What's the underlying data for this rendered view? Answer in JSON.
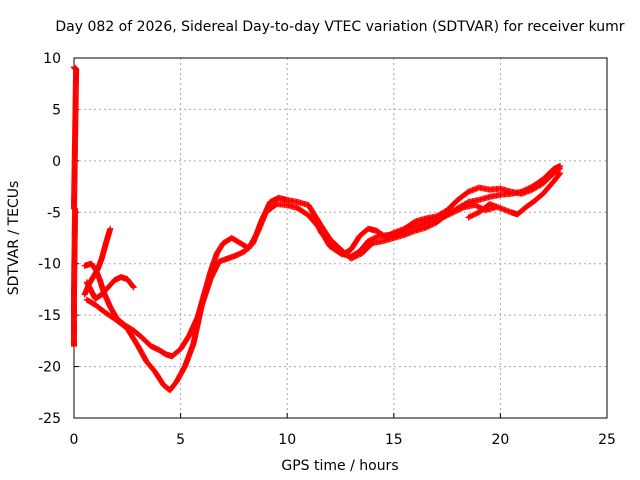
{
  "chart_data": {
    "type": "scatter",
    "title": "Day 082 of 2026, Sidereal Day-to-day VTEC variation (SDTVAR) for receiver kumr",
    "xlabel": "GPS time / hours",
    "ylabel": "SDTVAR / TECUs",
    "xlim": [
      0,
      25
    ],
    "ylim": [
      -25,
      10
    ],
    "xticks": [
      0,
      5,
      10,
      15,
      20,
      25
    ],
    "yticks": [
      -25,
      -20,
      -15,
      -10,
      -5,
      0,
      5,
      10
    ],
    "xtick_labels": [
      "0",
      "5",
      "10",
      "15",
      "20",
      "25"
    ],
    "ytick_labels": [
      "-25",
      "-20",
      "-15",
      "-10",
      "-5",
      "0",
      "5",
      "10"
    ],
    "grid": true,
    "marker": "+",
    "color": "#ff0000",
    "series": [
      {
        "points": [
          [
            0.0,
            9.1
          ],
          [
            0.05,
            9.0
          ],
          [
            0.1,
            8.9
          ],
          [
            0.0,
            -4.6
          ],
          [
            0.05,
            -4.7
          ],
          [
            0.0,
            -12.9
          ],
          [
            0.0,
            -16.0
          ],
          [
            0.0,
            -18.0
          ]
        ]
      },
      {
        "points": [
          [
            0.5,
            -13.0
          ],
          [
            0.7,
            -12.0
          ],
          [
            0.9,
            -11.3
          ],
          [
            1.1,
            -10.6
          ],
          [
            1.3,
            -9.5
          ],
          [
            1.5,
            -8.0
          ],
          [
            1.7,
            -6.6
          ]
        ]
      },
      {
        "points": [
          [
            0.6,
            -11.8
          ],
          [
            0.8,
            -12.6
          ],
          [
            1.0,
            -13.4
          ],
          [
            1.3,
            -13.0
          ],
          [
            1.6,
            -12.3
          ],
          [
            1.9,
            -11.6
          ],
          [
            2.2,
            -11.3
          ],
          [
            2.5,
            -11.5
          ],
          [
            2.8,
            -12.3
          ]
        ]
      },
      {
        "points": [
          [
            0.5,
            -10.2
          ],
          [
            0.8,
            -10.0
          ],
          [
            1.0,
            -10.5
          ],
          [
            1.2,
            -11.5
          ],
          [
            1.4,
            -12.8
          ],
          [
            1.7,
            -14.2
          ],
          [
            2.0,
            -15.3
          ],
          [
            2.4,
            -16.0
          ],
          [
            2.8,
            -16.5
          ],
          [
            3.2,
            -17.2
          ],
          [
            3.6,
            -18.0
          ],
          [
            4.0,
            -18.4
          ],
          [
            4.3,
            -18.8
          ],
          [
            4.6,
            -19.0
          ],
          [
            5.0,
            -18.3
          ],
          [
            5.4,
            -17.0
          ],
          [
            5.8,
            -15.2
          ],
          [
            6.1,
            -13.0
          ],
          [
            6.4,
            -10.8
          ],
          [
            6.7,
            -9.0
          ],
          [
            7.0,
            -8.0
          ],
          [
            7.4,
            -7.5
          ],
          [
            7.8,
            -8.0
          ],
          [
            8.2,
            -8.5
          ],
          [
            8.6,
            -7.0
          ],
          [
            9.0,
            -5.0
          ],
          [
            9.5,
            -4.2
          ],
          [
            10.0,
            -4.3
          ],
          [
            10.5,
            -4.6
          ],
          [
            11.0,
            -5.3
          ],
          [
            11.5,
            -6.5
          ],
          [
            12.0,
            -8.3
          ],
          [
            12.5,
            -9.0
          ],
          [
            13.0,
            -9.3
          ],
          [
            13.4,
            -8.8
          ],
          [
            13.8,
            -7.8
          ],
          [
            14.3,
            -7.3
          ],
          [
            14.8,
            -7.2
          ],
          [
            15.3,
            -7.0
          ],
          [
            15.8,
            -6.5
          ],
          [
            16.3,
            -6.2
          ],
          [
            16.8,
            -5.8
          ],
          [
            17.3,
            -5.5
          ],
          [
            17.8,
            -5.0
          ],
          [
            18.3,
            -4.5
          ],
          [
            18.8,
            -4.3
          ],
          [
            19.3,
            -4.8
          ],
          [
            19.8,
            -4.5
          ]
        ]
      },
      {
        "points": [
          [
            0.6,
            -13.5
          ],
          [
            1.0,
            -14.0
          ],
          [
            1.5,
            -14.8
          ],
          [
            2.0,
            -15.5
          ],
          [
            2.5,
            -16.3
          ],
          [
            3.0,
            -18.0
          ],
          [
            3.4,
            -19.5
          ],
          [
            3.8,
            -20.5
          ],
          [
            4.2,
            -21.8
          ],
          [
            4.5,
            -22.3
          ],
          [
            4.8,
            -21.5
          ],
          [
            5.2,
            -20.0
          ],
          [
            5.6,
            -17.8
          ],
          [
            6.0,
            -14.0
          ],
          [
            6.4,
            -11.5
          ],
          [
            6.8,
            -9.8
          ],
          [
            7.2,
            -9.5
          ],
          [
            7.6,
            -9.2
          ],
          [
            8.0,
            -8.8
          ],
          [
            8.4,
            -8.0
          ],
          [
            8.8,
            -5.8
          ],
          [
            9.2,
            -4.0
          ],
          [
            9.6,
            -3.6
          ],
          [
            10.0,
            -3.8
          ],
          [
            10.5,
            -4.0
          ],
          [
            11.0,
            -4.3
          ],
          [
            11.5,
            -6.0
          ],
          [
            12.0,
            -7.6
          ],
          [
            12.5,
            -8.6
          ],
          [
            13.0,
            -9.5
          ],
          [
            13.5,
            -9.0
          ],
          [
            14.0,
            -8.0
          ],
          [
            14.5,
            -7.8
          ],
          [
            15.0,
            -7.5
          ],
          [
            15.5,
            -7.2
          ],
          [
            16.0,
            -6.8
          ],
          [
            16.5,
            -6.5
          ],
          [
            17.0,
            -6.0
          ],
          [
            17.5,
            -5.2
          ],
          [
            18.0,
            -4.6
          ],
          [
            18.5,
            -4.0
          ],
          [
            19.0,
            -3.8
          ],
          [
            19.5,
            -3.5
          ],
          [
            20.0,
            -3.3
          ],
          [
            20.5,
            -3.2
          ],
          [
            21.0,
            -3.0
          ],
          [
            21.5,
            -2.5
          ],
          [
            22.0,
            -1.8
          ],
          [
            22.5,
            -0.8
          ],
          [
            22.8,
            -0.5
          ]
        ]
      },
      {
        "points": [
          [
            11.2,
            -5.2
          ],
          [
            11.6,
            -7.0
          ],
          [
            12.0,
            -8.0
          ],
          [
            12.3,
            -8.6
          ],
          [
            12.6,
            -9.1
          ],
          [
            13.0,
            -8.6
          ],
          [
            13.4,
            -7.3
          ],
          [
            13.8,
            -6.6
          ],
          [
            14.2,
            -6.8
          ],
          [
            14.6,
            -7.4
          ],
          [
            15.0,
            -7.0
          ],
          [
            15.5,
            -6.6
          ],
          [
            16.0,
            -5.9
          ],
          [
            16.5,
            -5.6
          ],
          [
            17.0,
            -5.4
          ],
          [
            17.5,
            -4.8
          ],
          [
            18.0,
            -3.8
          ],
          [
            18.5,
            -3.0
          ],
          [
            19.0,
            -2.6
          ],
          [
            19.5,
            -2.8
          ],
          [
            20.0,
            -2.7
          ],
          [
            20.5,
            -3.0
          ],
          [
            21.0,
            -3.2
          ],
          [
            21.5,
            -2.8
          ],
          [
            22.0,
            -2.2
          ],
          [
            22.5,
            -1.2
          ],
          [
            22.8,
            -0.7
          ]
        ]
      },
      {
        "points": [
          [
            18.5,
            -5.5
          ],
          [
            19.0,
            -5.0
          ],
          [
            19.5,
            -4.2
          ],
          [
            20.0,
            -4.6
          ],
          [
            20.5,
            -5.0
          ],
          [
            20.8,
            -5.2
          ],
          [
            21.2,
            -4.5
          ],
          [
            21.6,
            -3.9
          ],
          [
            22.0,
            -3.2
          ],
          [
            22.5,
            -2.0
          ],
          [
            22.8,
            -1.2
          ]
        ]
      }
    ]
  }
}
